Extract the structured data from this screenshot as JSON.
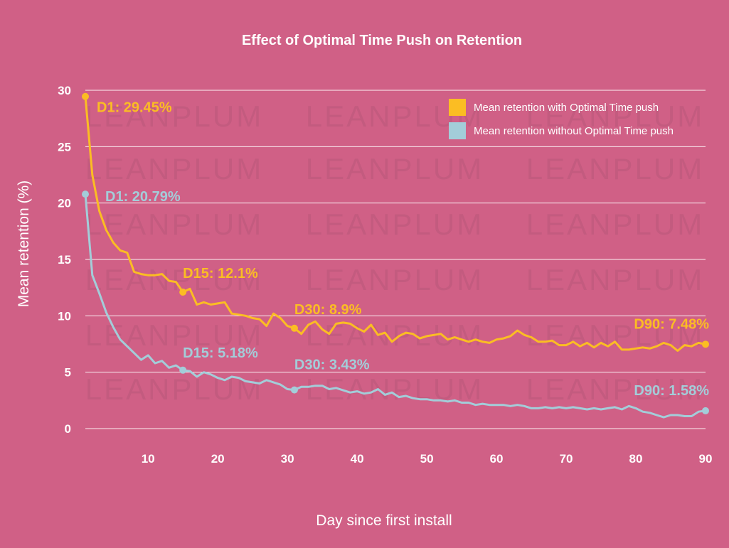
{
  "chart_data": {
    "type": "line",
    "title": "Effect of Optimal Time Push on Retention",
    "xlabel": "Day since first install",
    "ylabel": "Mean retention (%)",
    "xlim": [
      1,
      90
    ],
    "ylim": [
      0,
      30
    ],
    "x_ticks": [
      10,
      20,
      30,
      40,
      50,
      60,
      70,
      80,
      90
    ],
    "y_ticks": [
      0,
      5,
      10,
      15,
      20,
      25,
      30
    ],
    "grid": "horizontal",
    "legend_position": "top-right",
    "watermark": "LEANPLUM",
    "background_color": "#d06086",
    "series": [
      {
        "name": "Mean retention with Optimal Time push",
        "color": "#fbbd23",
        "x": [
          1,
          2,
          3,
          4,
          5,
          6,
          7,
          8,
          9,
          10,
          11,
          12,
          13,
          14,
          15,
          16,
          17,
          18,
          19,
          20,
          21,
          22,
          23,
          24,
          25,
          26,
          27,
          28,
          29,
          30,
          31,
          32,
          33,
          34,
          35,
          36,
          37,
          38,
          39,
          40,
          41,
          42,
          43,
          44,
          45,
          46,
          47,
          48,
          49,
          50,
          51,
          52,
          53,
          54,
          55,
          56,
          57,
          58,
          59,
          60,
          61,
          62,
          63,
          64,
          65,
          66,
          67,
          68,
          69,
          70,
          71,
          72,
          73,
          74,
          75,
          76,
          77,
          78,
          79,
          80,
          81,
          82,
          83,
          84,
          85,
          86,
          87,
          88,
          89,
          90
        ],
        "values": [
          29.45,
          22.5,
          19.3,
          17.6,
          16.5,
          15.8,
          15.6,
          13.9,
          13.7,
          13.6,
          13.6,
          13.7,
          13.1,
          13.0,
          12.1,
          12.4,
          11.0,
          11.2,
          11.0,
          11.1,
          11.2,
          10.2,
          10.1,
          10.0,
          9.8,
          9.7,
          9.1,
          10.2,
          9.8,
          9.1,
          8.9,
          8.4,
          9.2,
          9.5,
          8.8,
          8.4,
          9.3,
          9.4,
          9.3,
          8.9,
          8.6,
          9.2,
          8.3,
          8.5,
          7.7,
          8.2,
          8.5,
          8.4,
          8.0,
          8.2,
          8.3,
          8.4,
          7.9,
          8.1,
          7.9,
          7.7,
          7.9,
          7.7,
          7.6,
          7.9,
          8.0,
          8.2,
          8.7,
          8.3,
          8.1,
          7.7,
          7.7,
          7.8,
          7.4,
          7.4,
          7.7,
          7.3,
          7.6,
          7.2,
          7.6,
          7.3,
          7.7,
          7.0,
          7.0,
          7.1,
          7.2,
          7.1,
          7.3,
          7.6,
          7.4,
          6.9,
          7.4,
          7.3,
          7.6,
          7.48
        ]
      },
      {
        "name": "Mean retention without Optimal Time push",
        "color": "#a3cdd9",
        "x": [
          1,
          2,
          3,
          4,
          5,
          6,
          7,
          8,
          9,
          10,
          11,
          12,
          13,
          14,
          15,
          16,
          17,
          18,
          19,
          20,
          21,
          22,
          23,
          24,
          25,
          26,
          27,
          28,
          29,
          30,
          31,
          32,
          33,
          34,
          35,
          36,
          37,
          38,
          39,
          40,
          41,
          42,
          43,
          44,
          45,
          46,
          47,
          48,
          49,
          50,
          51,
          52,
          53,
          54,
          55,
          56,
          57,
          58,
          59,
          60,
          61,
          62,
          63,
          64,
          65,
          66,
          67,
          68,
          69,
          70,
          71,
          72,
          73,
          74,
          75,
          76,
          77,
          78,
          79,
          80,
          81,
          82,
          83,
          84,
          85,
          86,
          87,
          88,
          89,
          90
        ],
        "values": [
          20.79,
          13.6,
          12.0,
          10.3,
          9.0,
          7.9,
          7.3,
          6.7,
          6.1,
          6.5,
          5.8,
          6.0,
          5.4,
          5.6,
          5.18,
          5.1,
          4.6,
          5.0,
          4.8,
          4.5,
          4.3,
          4.6,
          4.5,
          4.2,
          4.1,
          4.0,
          4.3,
          4.1,
          3.9,
          3.5,
          3.43,
          3.7,
          3.7,
          3.8,
          3.8,
          3.5,
          3.6,
          3.4,
          3.2,
          3.3,
          3.1,
          3.2,
          3.5,
          3.0,
          3.2,
          2.8,
          2.9,
          2.7,
          2.6,
          2.6,
          2.5,
          2.5,
          2.4,
          2.5,
          2.3,
          2.3,
          2.1,
          2.2,
          2.1,
          2.1,
          2.1,
          2.0,
          2.1,
          2.0,
          1.8,
          1.8,
          1.9,
          1.8,
          1.9,
          1.8,
          1.9,
          1.8,
          1.7,
          1.8,
          1.7,
          1.8,
          1.9,
          1.7,
          2.0,
          1.8,
          1.5,
          1.4,
          1.2,
          1.0,
          1.2,
          1.2,
          1.1,
          1.1,
          1.5,
          1.58
        ]
      }
    ],
    "annotations": [
      {
        "series": 0,
        "x": 1,
        "y": 29.45,
        "label": "D1: 29.45%"
      },
      {
        "series": 0,
        "x": 15,
        "y": 12.1,
        "label": "D15: 12.1%"
      },
      {
        "series": 0,
        "x": 31,
        "y": 8.9,
        "label": "D30: 8.9%"
      },
      {
        "series": 0,
        "x": 90,
        "y": 7.48,
        "label": "D90: 7.48%"
      },
      {
        "series": 1,
        "x": 1,
        "y": 20.79,
        "label": "D1: 20.79%"
      },
      {
        "series": 1,
        "x": 15,
        "y": 5.18,
        "label": "D15: 5.18%"
      },
      {
        "series": 1,
        "x": 31,
        "y": 3.43,
        "label": "D30: 3.43%"
      },
      {
        "series": 1,
        "x": 90,
        "y": 1.58,
        "label": "D90: 1.58%"
      }
    ]
  }
}
